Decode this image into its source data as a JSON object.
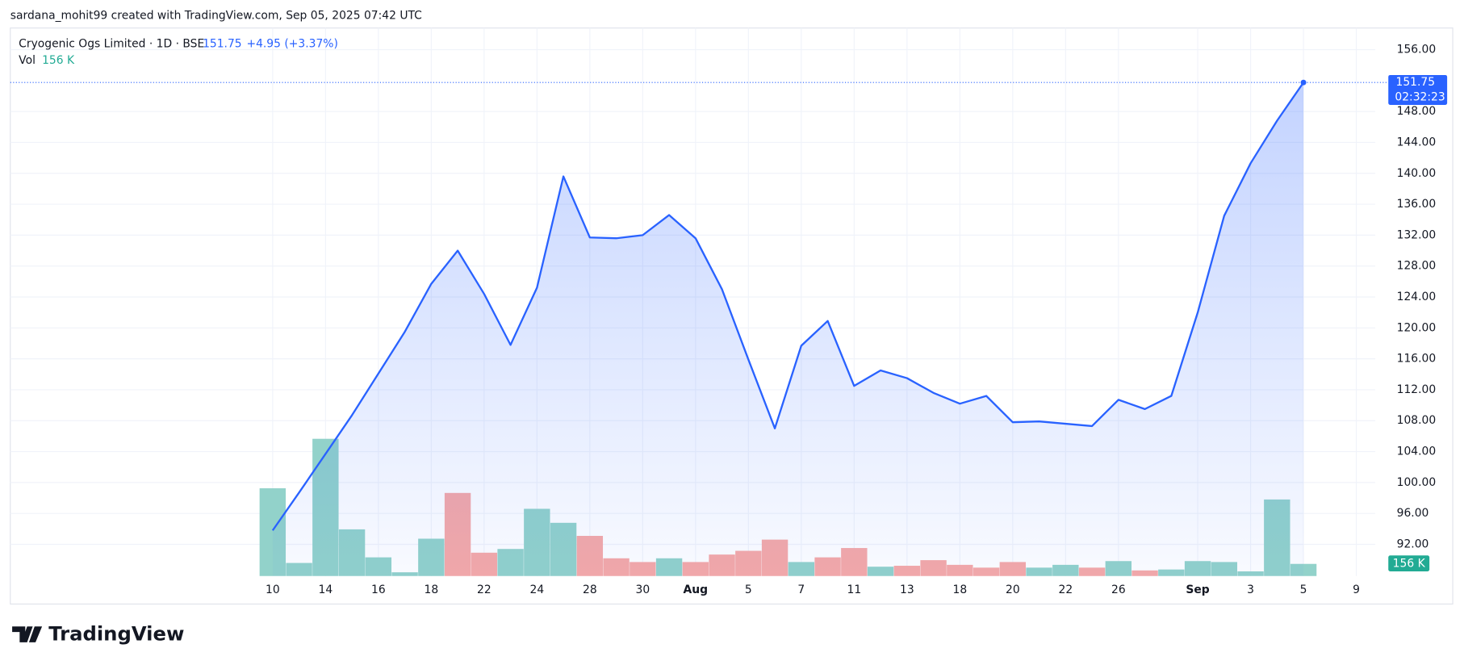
{
  "header": {
    "attribution": "sardana_mohit99 created with TradingView.com, Sep 05, 2025 07:42 UTC",
    "symbol": "Cryogenic Ogs Limited · 1D · BSE",
    "price": "151.75",
    "change": "+4.95 (+3.37%)",
    "volume_label": "Vol",
    "volume": "156 K"
  },
  "price_label": {
    "price": "151.75",
    "countdown": "02:32:23"
  },
  "footer": {
    "logo": "TradingView"
  },
  "chart_data": {
    "type": "area",
    "color": "#2962ff",
    "grid": true,
    "categories": [
      "10",
      null,
      "14",
      null,
      "16",
      null,
      "18",
      null,
      "22",
      null,
      "24",
      null,
      "28",
      null,
      "30",
      null,
      "Aug",
      null,
      "5",
      null,
      "7",
      null,
      "11",
      null,
      "13",
      null,
      "18",
      null,
      "20",
      null,
      "22",
      null,
      "26",
      null,
      null,
      "Sep",
      null,
      "3",
      null,
      "5",
      null,
      "9"
    ],
    "values": [
      93.8,
      98.7,
      103.7,
      108.7,
      114.1,
      119.5,
      125.7,
      130.0,
      124.4,
      117.8,
      125.2,
      139.6,
      131.7,
      131.6,
      132.0,
      134.6,
      131.6,
      125.0,
      115.9,
      107.0,
      117.7,
      120.9,
      112.5,
      114.5,
      113.5,
      111.6,
      110.2,
      111.2,
      107.8,
      107.9,
      107.6,
      107.3,
      110.7,
      109.5,
      111.2,
      122.0,
      134.5,
      141.3,
      146.8,
      151.75,
      null,
      null
    ],
    "ylim": [
      87.9,
      158.8
    ],
    "yticks": [
      {
        "value": 92,
        "label": "92.00"
      },
      {
        "value": 96,
        "label": "96.00"
      },
      {
        "value": 100,
        "label": "100.00"
      },
      {
        "value": 104,
        "label": "104.00"
      },
      {
        "value": 108,
        "label": "108.00"
      },
      {
        "value": 112,
        "label": "112.00"
      },
      {
        "value": 116,
        "label": "116.00"
      },
      {
        "value": 120,
        "label": "120.00"
      },
      {
        "value": 124,
        "label": "124.00"
      },
      {
        "value": 128,
        "label": "128.00"
      },
      {
        "value": 132,
        "label": "132.00"
      },
      {
        "value": 136,
        "label": "136.00"
      },
      {
        "value": 140,
        "label": "140.00"
      },
      {
        "value": 144,
        "label": "144.00"
      },
      {
        "value": 148,
        "label": "148.00"
      },
      {
        "value": 156,
        "label": "156.00"
      }
    ],
    "volume": {
      "type": "bar",
      "values": [
        1128,
        168,
        1764,
        600,
        240,
        48,
        480,
        1068,
        300,
        348,
        864,
        684,
        516,
        228,
        180,
        228,
        180,
        276,
        324,
        468,
        180,
        240,
        360,
        120,
        132,
        204,
        144,
        108,
        180,
        108,
        144,
        108,
        192,
        72,
        84,
        192,
        180,
        60,
        984,
        156,
        null,
        null
      ],
      "colors": [
        "#92d2ca",
        "#92d2ca",
        "#92d2ca",
        "#92d2ca",
        "#92d2ca",
        "#92d2ca",
        "#92d2ca",
        "#f6a9a7",
        "#f6a9a7",
        "#92d2ca",
        "#92d2ca",
        "#92d2ca",
        "#f6a9a7",
        "#f6a9a7",
        "#f6a9a7",
        "#92d2ca",
        "#f6a9a7",
        "#f6a9a7",
        "#f6a9a7",
        "#f6a9a7",
        "#92d2ca",
        "#f6a9a7",
        "#f6a9a7",
        "#92d2ca",
        "#f6a9a7",
        "#f6a9a7",
        "#f6a9a7",
        "#f6a9a7",
        "#f6a9a7",
        "#92d2ca",
        "#92d2ca",
        "#f6a9a7",
        "#92d2ca",
        "#f6a9a7",
        "#92d2ca",
        "#92d2ca",
        "#92d2ca",
        "#92d2ca",
        "#92d2ca",
        "#92d2ca",
        null,
        null
      ]
    }
  }
}
